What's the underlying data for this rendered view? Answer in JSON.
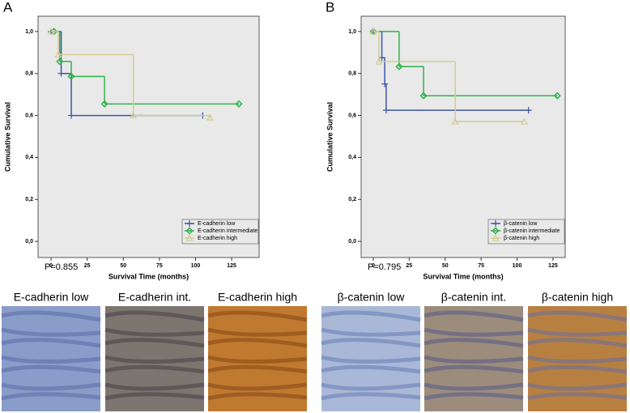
{
  "chart_data": [
    {
      "type": "step",
      "panel": "A",
      "ylabel": "Cumulative Survival",
      "xlabel": "Survival Time (months)",
      "annotation": "P=0.855",
      "xlim": [
        -9,
        144
      ],
      "ylim": [
        -0.077,
        1.073
      ],
      "xticks": [
        0,
        25,
        50,
        75,
        100,
        125
      ],
      "yticks": [
        {
          "value": 0,
          "label": "0,0"
        },
        {
          "value": 0.2,
          "label": "0,2"
        },
        {
          "value": 0.4,
          "label": "0,4"
        },
        {
          "value": 0.6,
          "label": "0,6"
        },
        {
          "value": 0.8,
          "label": "0,8"
        },
        {
          "value": 1.0,
          "label": "1,0"
        }
      ],
      "legend": "lower right",
      "series": [
        {
          "name": "E-cadherin low",
          "color": "#3a56a8",
          "marker": "plus",
          "x": [
            0,
            7,
            14,
            105
          ],
          "values": [
            1.0,
            0.8,
            0.6,
            0.6
          ]
        },
        {
          "name": "E-cadherin intermediate",
          "color": "#2fb34a",
          "marker": "diamond",
          "x": [
            2,
            6,
            14,
            37,
            130
          ],
          "values": [
            1.0,
            0.857,
            0.786,
            0.655,
            0.655
          ]
        },
        {
          "name": "E-cadherin high",
          "color": "#d2cd92",
          "marker": "triangle",
          "x": [
            0,
            5,
            57,
            110
          ],
          "values": [
            1.0,
            0.89,
            0.6,
            0.59
          ]
        }
      ]
    },
    {
      "type": "step",
      "panel": "B",
      "ylabel": "Cumulative Survival",
      "xlabel": "Survival Time (months)",
      "annotation": "P=0.795",
      "xlim": [
        -8.4,
        133.5
      ],
      "ylim": [
        -0.077,
        1.073
      ],
      "xticks": [
        0,
        25,
        50,
        75,
        100,
        125
      ],
      "yticks": [
        {
          "value": 0,
          "label": "0,0"
        },
        {
          "value": 0.2,
          "label": "0,2"
        },
        {
          "value": 0.4,
          "label": "0,4"
        },
        {
          "value": 0.6,
          "label": "0,6"
        },
        {
          "value": 0.8,
          "label": "0,8"
        },
        {
          "value": 1.0,
          "label": "1,0"
        }
      ],
      "legend": "lower right",
      "series": [
        {
          "name": "β-catenin low",
          "color": "#3a56a8",
          "marker": "plus",
          "x": [
            0,
            6,
            8,
            9,
            108
          ],
          "values": [
            1.0,
            0.875,
            0.75,
            0.625,
            0.625
          ]
        },
        {
          "name": "β-catenin intermediate",
          "color": "#2fb34a",
          "marker": "diamond",
          "x": [
            0,
            18,
            35,
            128
          ],
          "values": [
            1.0,
            0.833,
            0.694,
            0.694
          ]
        },
        {
          "name": "β-catenin high",
          "color": "#d2cd92",
          "marker": "triangle",
          "x": [
            0,
            4,
            57,
            105
          ],
          "values": [
            1.0,
            0.857,
            0.571,
            0.571
          ]
        }
      ]
    }
  ],
  "images": [
    {
      "caption": "E-cadherin low"
    },
    {
      "caption": "E-cadherin int."
    },
    {
      "caption": "E-cadherin high"
    },
    {
      "caption": "β-catenin low"
    },
    {
      "caption": "β-catenin int."
    },
    {
      "caption": "β-catenin high"
    }
  ]
}
